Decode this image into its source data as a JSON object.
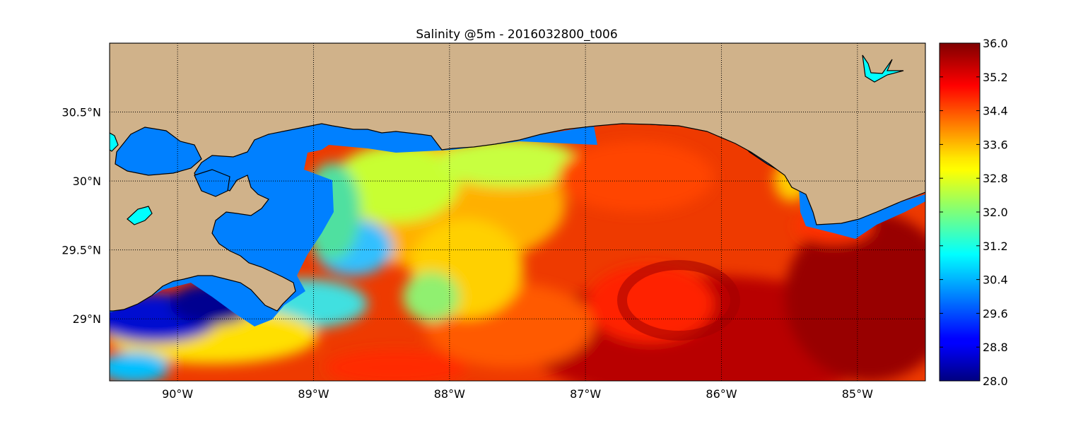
{
  "title": "Salinity @5m - 2016032800_t006",
  "map": {
    "lon_range": [
      -90.5,
      -84.5
    ],
    "lat_range": [
      28.55,
      31.0
    ],
    "land_color": "#d0b28a",
    "coastal_water_color": "#0080ff",
    "inland_lake_color": "#00ffff",
    "grid": "dotted",
    "lon_ticks": [
      {
        "value": -90,
        "label": "90°W"
      },
      {
        "value": -89,
        "label": "89°W"
      },
      {
        "value": -88,
        "label": "88°W"
      },
      {
        "value": -87,
        "label": "87°W"
      },
      {
        "value": -86,
        "label": "86°W"
      },
      {
        "value": -85,
        "label": "85°W"
      }
    ],
    "lat_ticks": [
      {
        "value": 30.5,
        "label": "30.5°N"
      },
      {
        "value": 30.0,
        "label": "30°N"
      },
      {
        "value": 29.5,
        "label": "29.5°N"
      },
      {
        "value": 29.0,
        "label": "29°N"
      }
    ]
  },
  "colorbar": {
    "colormap": "jet",
    "min": 28.0,
    "max": 36.0,
    "tick_labels": [
      "36.0",
      "35.2",
      "34.4",
      "33.6",
      "32.8",
      "32.0",
      "31.2",
      "30.4",
      "29.6",
      "28.8",
      "28.0"
    ]
  }
}
